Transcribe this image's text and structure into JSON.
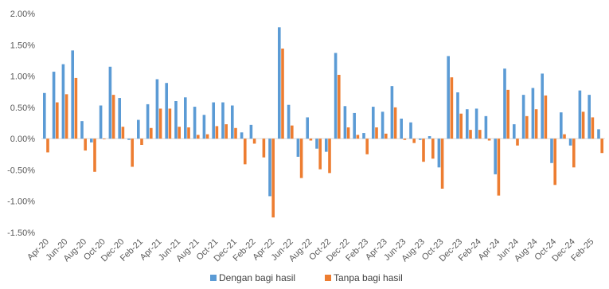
{
  "chart_data": {
    "type": "bar",
    "title": "",
    "xlabel": "",
    "ylabel": "",
    "ylim": [
      -1.5,
      2.0
    ],
    "y_ticks": [
      "2.00%",
      "1.50%",
      "1.00%",
      "0.50%",
      "0.00%",
      "-0.50%",
      "-1.00%",
      "-1.50%"
    ],
    "y_tick_values": [
      2.0,
      1.5,
      1.0,
      0.5,
      0.0,
      -0.5,
      -1.0,
      -1.5
    ],
    "grid": false,
    "legend_position": "bottom",
    "categories": [
      "Apr-20",
      "May-20",
      "Jun-20",
      "Jul-20",
      "Aug-20",
      "Sep-20",
      "Oct-20",
      "Nov-20",
      "Dec-20",
      "Jan-21",
      "Feb-21",
      "Mar-21",
      "Apr-21",
      "May-21",
      "Jun-21",
      "Jul-21",
      "Aug-21",
      "Sep-21",
      "Oct-21",
      "Nov-21",
      "Dec-21",
      "Jan-22",
      "Feb-22",
      "Mar-22",
      "Apr-22",
      "May-22",
      "Jun-22",
      "Jul-22",
      "Aug-22",
      "Sep-22",
      "Oct-22",
      "Nov-22",
      "Dec-22",
      "Jan-23",
      "Feb-23",
      "Mar-23",
      "Apr-23",
      "May-23",
      "Jun-23",
      "Jul-23",
      "Aug-23",
      "Sep-23",
      "Oct-23",
      "Nov-23",
      "Dec-23",
      "Jan-24",
      "Feb-24",
      "Mar-24",
      "Apr-24",
      "May-24",
      "Jun-24",
      "Jul-24",
      "Aug-24",
      "Sep-24",
      "Oct-24",
      "Nov-24",
      "Dec-24",
      "Jan-25",
      "Feb-25",
      "Mar-25"
    ],
    "x_tick_labels": [
      "Apr-20",
      "Jun-20",
      "Aug-20",
      "Oct-20",
      "Dec-20",
      "Feb-21",
      "Apr-21",
      "Jun-21",
      "Aug-21",
      "Oct-21",
      "Dec-21",
      "Feb-22",
      "Apr-22",
      "Jun-22",
      "Aug-22",
      "Oct-22",
      "Dec-22",
      "Feb-23",
      "Apr-23",
      "Jun-23",
      "Aug-23",
      "Oct-23",
      "Dec-23",
      "Feb-24",
      "Apr-24",
      "Jun-24",
      "Aug-24",
      "Oct-24",
      "Dec-24",
      "Feb-25"
    ],
    "series": [
      {
        "name": "Dengan bagi hasil",
        "color": "#5B9BD5",
        "values": [
          0.73,
          1.07,
          1.19,
          1.41,
          0.28,
          -0.06,
          0.53,
          1.15,
          0.65,
          -0.02,
          0.3,
          0.55,
          0.95,
          0.89,
          0.6,
          0.66,
          0.51,
          0.38,
          0.58,
          0.58,
          0.53,
          0.1,
          0.22,
          0.0,
          -0.92,
          1.78,
          0.54,
          -0.29,
          0.34,
          -0.16,
          -0.21,
          1.37,
          0.52,
          0.41,
          0.09,
          0.51,
          0.43,
          0.84,
          0.32,
          0.26,
          -0.02,
          0.04,
          -0.46,
          1.32,
          0.74,
          0.47,
          0.48,
          0.36,
          -0.57,
          1.12,
          0.23,
          0.7,
          0.81,
          1.04,
          -0.39,
          0.42,
          -0.11,
          0.77,
          0.7,
          0.15
        ]
      },
      {
        "name": "Tanpa bagi hasil",
        "color": "#ED7D31",
        "values": [
          -0.22,
          0.58,
          0.71,
          0.97,
          -0.19,
          -0.53,
          -0.01,
          0.7,
          0.19,
          -0.45,
          -0.1,
          0.17,
          0.48,
          0.48,
          0.19,
          0.18,
          0.06,
          0.07,
          0.2,
          0.23,
          0.17,
          -0.41,
          -0.08,
          -0.3,
          -1.26,
          1.44,
          0.21,
          -0.63,
          -0.03,
          -0.49,
          -0.55,
          1.02,
          0.18,
          0.06,
          -0.25,
          0.18,
          0.08,
          0.5,
          -0.02,
          -0.07,
          -0.37,
          -0.32,
          -0.8,
          0.98,
          0.4,
          0.14,
          0.14,
          -0.03,
          -0.91,
          0.78,
          -0.11,
          0.36,
          0.47,
          0.69,
          -0.74,
          0.07,
          -0.46,
          0.43,
          0.34,
          -0.23
        ]
      }
    ]
  }
}
